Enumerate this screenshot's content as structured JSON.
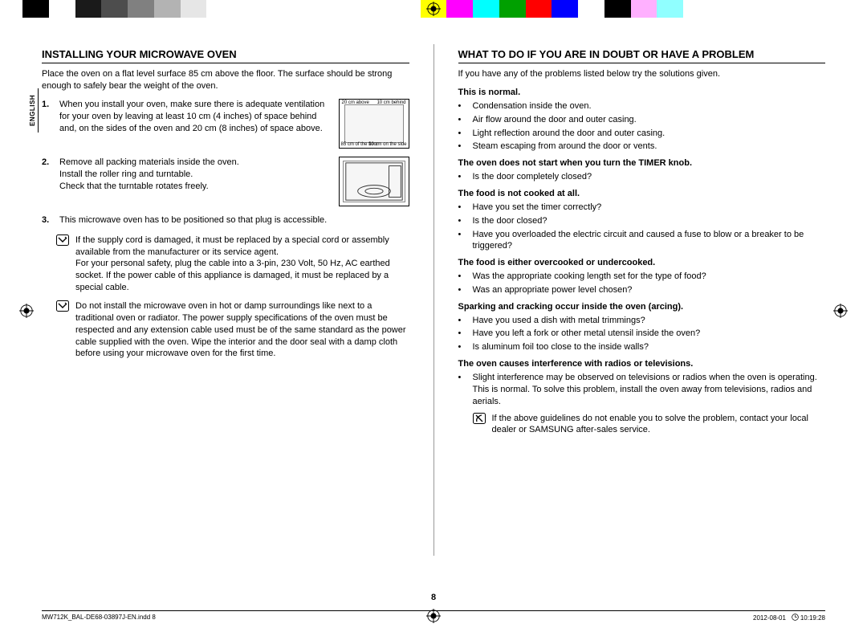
{
  "colorbar": [
    {
      "c": "#000000",
      "w": 3.2
    },
    {
      "c": "#ffffff",
      "w": 3.2
    },
    {
      "c": "#1a1a1a",
      "w": 3.2
    },
    {
      "c": "#4d4d4d",
      "w": 3.2
    },
    {
      "c": "#808080",
      "w": 3.2
    },
    {
      "c": "#b3b3b3",
      "w": 3.2
    },
    {
      "c": "#e6e6e6",
      "w": 3.2
    },
    {
      "c": "#ffffff",
      "w": 26.0
    },
    {
      "c": "#ffff00",
      "w": 3.2
    },
    {
      "c": "#ff00ff",
      "w": 3.2
    },
    {
      "c": "#00ffff",
      "w": 3.2
    },
    {
      "c": "#00a000",
      "w": 3.2
    },
    {
      "c": "#ff0000",
      "w": 3.2
    },
    {
      "c": "#0000ff",
      "w": 3.2
    },
    {
      "c": "#ffffff",
      "w": 3.2
    },
    {
      "c": "#000000",
      "w": 3.2
    },
    {
      "c": "#ffb0ff",
      "w": 3.2
    },
    {
      "c": "#90ffff",
      "w": 3.2
    },
    {
      "c": "#ffffff",
      "w": 14.0
    }
  ],
  "lang_tab": "ENGLISH",
  "left": {
    "heading": "INSTALLING YOUR MICROWAVE OVEN",
    "intro": "Place the oven on a flat level surface 85 cm above the floor. The surface should be strong enough to safely bear the weight of the oven.",
    "steps": [
      {
        "num": "1.",
        "text": "When you install your oven, make sure there is adequate ventilation for your oven by leaving at least 10 cm (4 inches) of space behind and, on the sides of the oven and 20 cm (8 inches) of space above.",
        "fig": "clearance"
      },
      {
        "num": "2.",
        "text": "Remove all packing materials inside the oven.\nInstall the roller ring and turntable.\nCheck that the turntable rotates freely.",
        "fig": "interior"
      },
      {
        "num": "3.",
        "text": "This microwave oven has to be positioned so that plug is accessible."
      }
    ],
    "fig1": {
      "top_left": "20 cm above",
      "top_right": "10 cm behind",
      "bot_left": "85 cm of the floor",
      "bot_right": "10 cm on the side"
    },
    "notes": [
      "If the supply cord is damaged, it must be replaced by a special cord or assembly available from the manufacturer or its service agent.\nFor your personal safety, plug the cable into a 3-pin, 230 Volt, 50 Hz, AC earthed socket. If the power cable of this appliance is damaged, it must be replaced by a special cable.",
      "Do not install the microwave oven in hot or damp surroundings like next to a traditional oven or radiator. The power supply specifications of the oven must be respected and any extension cable used must be of the same standard as the power cable supplied with the oven. Wipe the interior and the door seal with a damp cloth before using your microwave oven for the first time."
    ]
  },
  "right": {
    "heading": "WHAT TO DO IF YOU ARE IN DOUBT OR HAVE A PROBLEM",
    "intro": "If you have any of the problems listed below try the solutions given.",
    "groups": [
      {
        "head": "This is normal.",
        "items": [
          "Condensation inside the oven.",
          "Air flow around the door and outer casing.",
          "Light reflection around the door and outer casing.",
          "Steam escaping from around the door or vents."
        ]
      },
      {
        "head": "The oven does not start when you turn the TIMER knob.",
        "items": [
          "Is the door completely closed?"
        ]
      },
      {
        "head": "The food is not cooked at all.",
        "items": [
          "Have you set the timer correctly?",
          "Is the door closed?",
          "Have you overloaded the electric circuit and caused a fuse to blow or a breaker to be triggered?"
        ]
      },
      {
        "head": "The food is either overcooked or undercooked.",
        "items": [
          "Was the appropriate cooking length set for the type of food?",
          "Was an appropriate power level chosen?"
        ]
      },
      {
        "head": "Sparking and cracking occur inside the oven (arcing).",
        "items": [
          "Have you used a dish with metal trimmings?",
          "Have you left a fork or other metal utensil inside the oven?",
          "Is aluminum foil too close to the inside walls?"
        ]
      },
      {
        "head": "The oven causes interference with radios or televisions.",
        "items": [
          "Slight interference may be observed on televisions or radios when the oven is operating. This is normal. To solve this problem, install the oven away from televisions, radios and aerials."
        ]
      }
    ],
    "note": "If the above guidelines do not enable you to solve the problem, contact your local dealer or SAMSUNG after-sales service."
  },
  "pagenum": "8",
  "footer": {
    "left": "MW712K_BAL-DE68-03897J-EN.indd   8",
    "date": "2012-08-01",
    "time": "10:19:28"
  }
}
